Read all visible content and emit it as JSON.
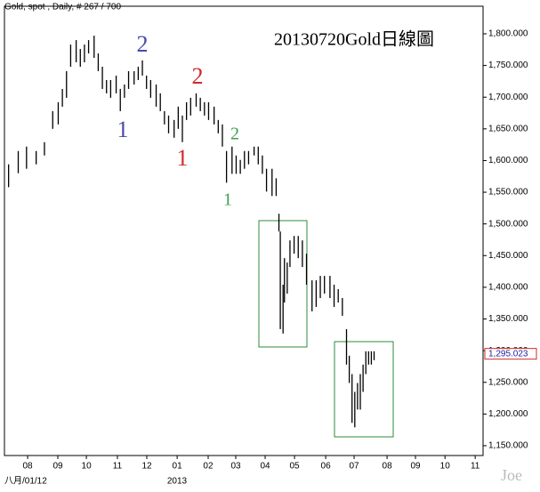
{
  "chart_data": {
    "type": "hilo",
    "header": "Gold, spot , Daily, # 267 / 700",
    "title": "20130720Gold日線圖",
    "watermark": "Joe",
    "date_labels": [
      "八月/01/12",
      "2013"
    ],
    "color": "#000000",
    "x": [
      3,
      10,
      16,
      23,
      29,
      35,
      39,
      42,
      45,
      48,
      52,
      55,
      58,
      61,
      65,
      68,
      71,
      74,
      77,
      81,
      84,
      87,
      90,
      94,
      97,
      100,
      103,
      106,
      110,
      113,
      116,
      119,
      123,
      126,
      129,
      132,
      135,
      139,
      142,
      145,
      148,
      152,
      155,
      158,
      161,
      165,
      168,
      171,
      174,
      177,
      181,
      184,
      187,
      190,
      194,
      197,
      199,
      200,
      202,
      203,
      205,
      207,
      210,
      213,
      216,
      219,
      223,
      226,
      229,
      232,
      236,
      239,
      242,
      245,
      248,
      250,
      252,
      254,
      256,
      258,
      260,
      262,
      264,
      266,
      268
    ],
    "high": [
      1594,
      1615,
      1622,
      1615,
      1629,
      1678,
      1692,
      1713,
      1741,
      1783,
      1790,
      1776,
      1783,
      1790,
      1797,
      1769,
      1748,
      1727,
      1727,
      1734,
      1713,
      1720,
      1741,
      1741,
      1748,
      1758,
      1734,
      1727,
      1720,
      1706,
      1678,
      1671,
      1664,
      1685,
      1671,
      1692,
      1699,
      1706,
      1699,
      1692,
      1692,
      1685,
      1664,
      1657,
      1615,
      1622,
      1608,
      1601,
      1615,
      1615,
      1622,
      1622,
      1608,
      1587,
      1587,
      1572,
      1516,
      1488,
      1404,
      1446,
      1439,
      1474,
      1481,
      1481,
      1474,
      1453,
      1411,
      1411,
      1418,
      1418,
      1418,
      1404,
      1397,
      1383,
      1334,
      1292,
      1263,
      1235,
      1249,
      1263,
      1278,
      1299,
      1299,
      1299,
      1299
    ],
    "low": [
      1558,
      1580,
      1587,
      1594,
      1608,
      1650,
      1657,
      1685,
      1699,
      1748,
      1755,
      1748,
      1755,
      1769,
      1762,
      1741,
      1713,
      1706,
      1699,
      1706,
      1678,
      1699,
      1713,
      1720,
      1727,
      1734,
      1713,
      1699,
      1685,
      1678,
      1657,
      1643,
      1636,
      1650,
      1629,
      1664,
      1671,
      1685,
      1678,
      1671,
      1664,
      1657,
      1643,
      1622,
      1565,
      1579,
      1579,
      1579,
      1587,
      1594,
      1608,
      1594,
      1579,
      1551,
      1544,
      1544,
      1488,
      1334,
      1327,
      1376,
      1390,
      1432,
      1453,
      1446,
      1432,
      1404,
      1362,
      1369,
      1383,
      1390,
      1383,
      1369,
      1376,
      1355,
      1278,
      1249,
      1186,
      1179,
      1207,
      1207,
      1235,
      1263,
      1278,
      1278,
      1285
    ],
    "last_price": {
      "value": 1295.023,
      "label": "1,295.023"
    },
    "xlim": [
      0,
      347
    ],
    "xticks": [
      {
        "value": 16.8,
        "label": "08"
      },
      {
        "value": 38.7,
        "label": "09"
      },
      {
        "value": 59.4,
        "label": "10"
      },
      {
        "value": 81.9,
        "label": "11"
      },
      {
        "value": 103.2,
        "label": "12"
      },
      {
        "value": 125.2,
        "label": "01"
      },
      {
        "value": 147.7,
        "label": "02"
      },
      {
        "value": 167.7,
        "label": "03"
      },
      {
        "value": 189,
        "label": "04"
      },
      {
        "value": 210.3,
        "label": "05"
      },
      {
        "value": 232.9,
        "label": "06"
      },
      {
        "value": 253.5,
        "label": "07"
      },
      {
        "value": 277.4,
        "label": "08"
      },
      {
        "value": 298,
        "label": "09"
      },
      {
        "value": 319.4,
        "label": "10"
      },
      {
        "value": 341.3,
        "label": "11"
      }
    ],
    "ylim": [
      1134.5,
      1843.5
    ],
    "yticks": [
      {
        "value": 1150,
        "label": "1,150.000"
      },
      {
        "value": 1200,
        "label": "1,200.000"
      },
      {
        "value": 1250,
        "label": "1,250.000"
      },
      {
        "value": 1300,
        "label": "1,300.000"
      },
      {
        "value": 1350,
        "label": "1,350.000"
      },
      {
        "value": 1400,
        "label": "1,400.000"
      },
      {
        "value": 1450,
        "label": "1,450.000"
      },
      {
        "value": 1500,
        "label": "1,500.000"
      },
      {
        "value": 1550,
        "label": "1,550.000"
      },
      {
        "value": 1600,
        "label": "1,600.000"
      },
      {
        "value": 1650,
        "label": "1,650.000"
      },
      {
        "value": 1700,
        "label": "1,700.000"
      },
      {
        "value": 1750,
        "label": "1,750.000"
      },
      {
        "value": 1800,
        "label": "1,800.000"
      }
    ],
    "annotations": [
      {
        "text": "2",
        "color": "#4a4aa8"
      },
      {
        "text": "1",
        "color": "#4a4aa8"
      },
      {
        "text": "2",
        "color": "#d02a2a"
      },
      {
        "text": "1",
        "color": "#d02a2a"
      },
      {
        "text": "2",
        "color": "#3aa050"
      },
      {
        "text": "1",
        "color": "#3aa050"
      }
    ]
  }
}
